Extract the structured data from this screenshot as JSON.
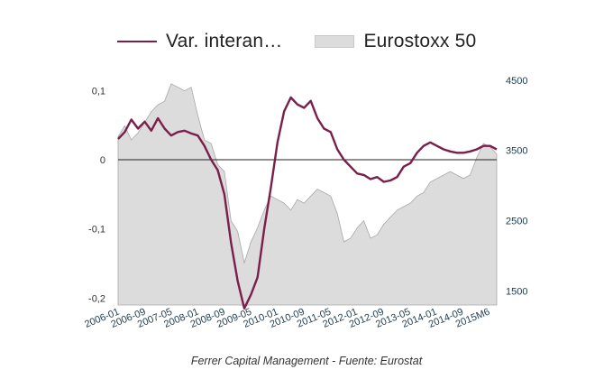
{
  "legend": {
    "line_label": "Var. interan…",
    "area_label": "Eurostoxx 50"
  },
  "source": "Ferrer Capital Management - Fuente: Eurostat",
  "colors": {
    "line": "#7a1f4a",
    "area": "#dcdcdc",
    "area_stroke": "#a8a8a8",
    "zero_line": "#222222",
    "right_ticks": "#1f3b4d"
  },
  "chart_data": {
    "type": "line+area",
    "x_tick_labels": [
      "2006-01",
      "2006-09",
      "2007-05",
      "2008-01",
      "2008-09",
      "2009-05",
      "2010-01",
      "2010-09",
      "2011-05",
      "2012-01",
      "2012-09",
      "2013-05",
      "2014-01",
      "2014-09",
      "2015M6"
    ],
    "y_left": {
      "lim": [
        -0.21,
        0.12
      ],
      "ticks": [
        0.1,
        0,
        -0.1,
        -0.2
      ],
      "tick_labels": [
        "0,1",
        "0",
        "-0,1",
        "-0,2"
      ]
    },
    "y_right": {
      "lim": [
        1300,
        4550
      ],
      "ticks": [
        4500,
        3500,
        2500,
        1500
      ],
      "tick_labels": [
        "4500",
        "3500",
        "2500",
        "1500"
      ]
    },
    "grid": false,
    "legend_position": "top",
    "series": [
      {
        "name": "Var. interan…",
        "type": "line",
        "axis": "left",
        "x": [
          "2006-01",
          "2006-03",
          "2006-05",
          "2006-07",
          "2006-09",
          "2006-11",
          "2007-01",
          "2007-03",
          "2007-05",
          "2007-07",
          "2007-09",
          "2007-11",
          "2008-01",
          "2008-03",
          "2008-05",
          "2008-07",
          "2008-09",
          "2008-11",
          "2009-01",
          "2009-03",
          "2009-05",
          "2009-07",
          "2009-09",
          "2009-11",
          "2010-01",
          "2010-03",
          "2010-05",
          "2010-07",
          "2010-09",
          "2010-11",
          "2011-01",
          "2011-03",
          "2011-05",
          "2011-07",
          "2011-09",
          "2011-11",
          "2012-01",
          "2012-03",
          "2012-05",
          "2012-07",
          "2012-09",
          "2012-11",
          "2013-01",
          "2013-03",
          "2013-05",
          "2013-07",
          "2013-09",
          "2013-11",
          "2014-01",
          "2014-03",
          "2014-05",
          "2014-07",
          "2014-09",
          "2014-11",
          "2015-01",
          "2015-03",
          "2015-05",
          "2015-06"
        ],
        "values": [
          0.03,
          0.04,
          0.058,
          0.045,
          0.055,
          0.042,
          0.06,
          0.045,
          0.035,
          0.04,
          0.042,
          0.038,
          0.035,
          0.02,
          0.0,
          -0.015,
          -0.05,
          -0.12,
          -0.175,
          -0.215,
          -0.195,
          -0.17,
          -0.1,
          -0.04,
          0.025,
          0.07,
          0.09,
          0.08,
          0.075,
          0.085,
          0.06,
          0.045,
          0.04,
          0.015,
          0.0,
          -0.01,
          -0.02,
          -0.022,
          -0.028,
          -0.025,
          -0.032,
          -0.03,
          -0.025,
          -0.01,
          -0.005,
          0.01,
          0.02,
          0.025,
          0.02,
          0.015,
          0.012,
          0.01,
          0.01,
          0.012,
          0.015,
          0.02,
          0.02,
          0.015
        ]
      },
      {
        "name": "Eurostoxx 50",
        "type": "area",
        "axis": "right",
        "x": [
          "2006-01",
          "2006-03",
          "2006-05",
          "2006-07",
          "2006-09",
          "2006-11",
          "2007-01",
          "2007-03",
          "2007-05",
          "2007-07",
          "2007-09",
          "2007-11",
          "2008-01",
          "2008-03",
          "2008-05",
          "2008-07",
          "2008-09",
          "2008-11",
          "2009-01",
          "2009-03",
          "2009-05",
          "2009-07",
          "2009-09",
          "2009-11",
          "2010-01",
          "2010-03",
          "2010-05",
          "2010-07",
          "2010-09",
          "2010-11",
          "2011-01",
          "2011-03",
          "2011-05",
          "2011-07",
          "2011-09",
          "2011-11",
          "2012-01",
          "2012-03",
          "2012-05",
          "2012-07",
          "2012-09",
          "2012-11",
          "2013-01",
          "2013-03",
          "2013-05",
          "2013-07",
          "2013-09",
          "2013-11",
          "2014-01",
          "2014-03",
          "2014-05",
          "2014-07",
          "2014-09",
          "2014-11",
          "2015-01",
          "2015-03",
          "2015-05",
          "2015-06"
        ],
        "values": [
          3700,
          3850,
          3650,
          3750,
          3900,
          4050,
          4150,
          4200,
          4450,
          4400,
          4350,
          4400,
          4000,
          3650,
          3600,
          3300,
          3200,
          2500,
          2350,
          1900,
          2200,
          2400,
          2650,
          2850,
          2800,
          2750,
          2650,
          2800,
          2750,
          2850,
          2950,
          2900,
          2850,
          2600,
          2200,
          2250,
          2400,
          2500,
          2250,
          2300,
          2450,
          2550,
          2650,
          2700,
          2750,
          2850,
          2900,
          3050,
          3100,
          3150,
          3200,
          3150,
          3100,
          3150,
          3400,
          3600,
          3550,
          3450
        ]
      }
    ]
  }
}
